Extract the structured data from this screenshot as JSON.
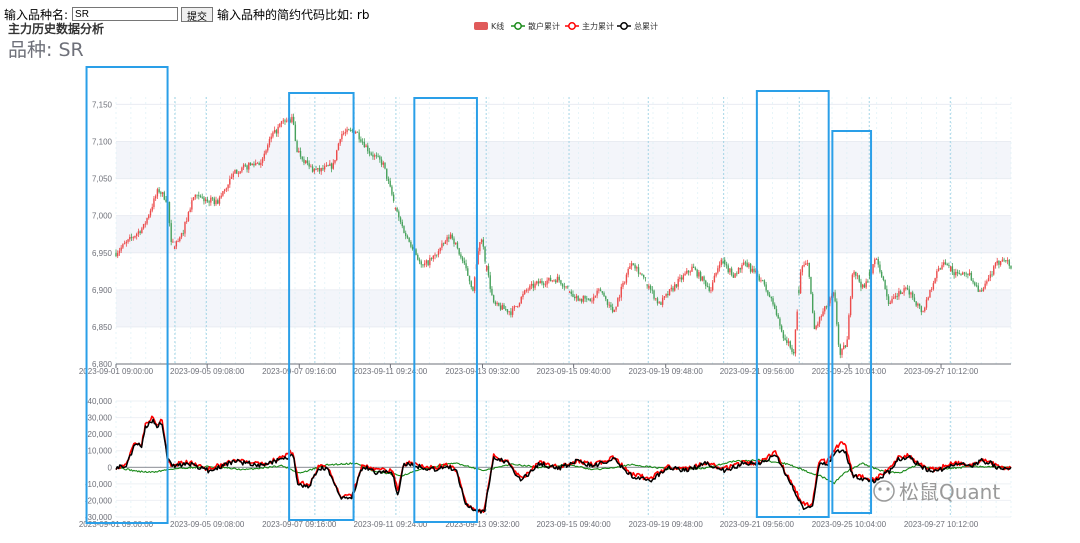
{
  "form": {
    "label": "输入品种名:",
    "input_value": "SR",
    "submit_label": "提交",
    "hint": "输入品种的简约代码比如: rb"
  },
  "chart_title": "主力历史数据分析",
  "variety_label": "品种: SR",
  "watermark": "松鼠Quant",
  "colors": {
    "up": "#ec4b4b",
    "down": "#47a15c",
    "retail": "#1a8a1a",
    "main": "#ff0000",
    "total": "#000000",
    "highlight": "#2a9fe8"
  },
  "chart_data": [
    {
      "type": "candlestick",
      "title": "",
      "legend": [
        {
          "name": "K线",
          "icon": "rect",
          "color": "#e05a5a"
        },
        {
          "name": "散户累计",
          "icon": "circle-line",
          "color": "#1a8a1a"
        },
        {
          "name": "主力累计",
          "icon": "circle-line",
          "color": "#ff0000"
        },
        {
          "name": "总累计",
          "icon": "circle-line",
          "color": "#000000"
        }
      ],
      "legend_position": "top-center",
      "x_tick_labels": [
        "2023-09-01 09:00:00",
        "2023-09-05 09:08:00",
        "2023-09-07 09:16:00",
        "2023-09-11 09:24:00",
        "2023-09-13 09:32:00",
        "2023-09-15 09:40:00",
        "2023-09-19 09:48:00",
        "2023-09-21 09:56:00",
        "2023-09-25 10:04:00",
        "2023-09-27 10:12:00"
      ],
      "y_ticks": [
        6800,
        6850,
        6900,
        6950,
        7000,
        7050,
        7100,
        7150
      ],
      "y_tick_labels": [
        "6,800",
        "6,850",
        "6,900",
        "6,950",
        "7,000",
        "7,050",
        "7,100",
        "7,150"
      ],
      "ylim": [
        6800,
        7160
      ],
      "grid_striped": true,
      "price_path": [
        [
          0,
          6950
        ],
        [
          1.5,
          6985
        ],
        [
          2.3,
          7035
        ],
        [
          2.8,
          7020
        ],
        [
          3.0,
          6960
        ],
        [
          3.5,
          6968
        ],
        [
          4.2,
          7025
        ],
        [
          5.5,
          7018
        ],
        [
          6.5,
          7060
        ],
        [
          7.3,
          7068
        ],
        [
          8.0,
          7075
        ],
        [
          8.3,
          7100
        ],
        [
          9.0,
          7125
        ],
        [
          9.6,
          7130
        ],
        [
          9.8,
          7090
        ],
        [
          10.5,
          7065
        ],
        [
          11.0,
          7060
        ],
        [
          11.8,
          7068
        ],
        [
          12.2,
          7110
        ],
        [
          13.0,
          7115
        ],
        [
          13.8,
          7085
        ],
        [
          14.5,
          7070
        ],
        [
          15.3,
          7000
        ],
        [
          15.8,
          6970
        ],
        [
          16.2,
          6955
        ],
        [
          16.6,
          6930
        ],
        [
          17.3,
          6945
        ],
        [
          18.2,
          6975
        ],
        [
          18.8,
          6940
        ],
        [
          19.4,
          6900
        ],
        [
          19.8,
          6975
        ],
        [
          20.5,
          6880
        ],
        [
          21.5,
          6870
        ],
        [
          22.3,
          6900
        ],
        [
          23.0,
          6910
        ],
        [
          24.0,
          6915
        ],
        [
          25.0,
          6890
        ],
        [
          25.8,
          6885
        ],
        [
          26.3,
          6900
        ],
        [
          27.0,
          6870
        ],
        [
          28.0,
          6940
        ],
        [
          28.8,
          6910
        ],
        [
          29.5,
          6880
        ],
        [
          30.5,
          6910
        ],
        [
          31.3,
          6930
        ],
        [
          32.3,
          6900
        ],
        [
          32.8,
          6940
        ],
        [
          33.5,
          6920
        ],
        [
          34.2,
          6935
        ],
        [
          35.0,
          6915
        ],
        [
          35.7,
          6880
        ],
        [
          36.2,
          6840
        ],
        [
          36.8,
          6815
        ],
        [
          37.2,
          6930
        ],
        [
          37.6,
          6935
        ],
        [
          37.9,
          6845
        ],
        [
          38.4,
          6870
        ],
        [
          39.0,
          6895
        ],
        [
          39.3,
          6810
        ],
        [
          39.7,
          6830
        ],
        [
          40.0,
          6930
        ],
        [
          40.6,
          6900
        ],
        [
          41.3,
          6945
        ],
        [
          42.0,
          6880
        ],
        [
          42.5,
          6895
        ],
        [
          43.0,
          6900
        ],
        [
          43.8,
          6870
        ],
        [
          44.5,
          6920
        ],
        [
          45.0,
          6940
        ],
        [
          45.6,
          6920
        ],
        [
          46.2,
          6925
        ],
        [
          47.0,
          6895
        ],
        [
          47.7,
          6930
        ],
        [
          48.2,
          6945
        ],
        [
          48.6,
          6930
        ]
      ],
      "session_breaks": [
        3.2,
        4.9,
        10.8,
        15.2,
        19.6,
        20.1,
        24.6,
        28.9,
        33.0,
        37.1,
        40.9,
        45.3
      ]
    },
    {
      "type": "line",
      "title": "",
      "x_tick_labels": [
        "2023-09-01 09:00:00",
        "2023-09-05 09:08:00",
        "2023-09-07 09:16:00",
        "2023-09-11 09:24:00",
        "2023-09-13 09:32:00",
        "2023-09-15 09:40:00",
        "2023-09-19 09:48:00",
        "2023-09-21 09:56:00",
        "2023-09-25 10:04:00",
        "2023-09-27 10:12:00"
      ],
      "y_ticks": [
        -30000,
        -20000,
        -10000,
        0,
        10000,
        20000,
        30000,
        40000
      ],
      "y_tick_labels": [
        "-30,000",
        "-20,000",
        "-10,000",
        "0",
        "10,000",
        "20,000",
        "30,000",
        "40,000"
      ],
      "ylim": [
        -30000,
        40000
      ],
      "series": [
        {
          "name": "散户累计",
          "points": [
            [
              0,
              0
            ],
            [
              1.2,
              -2500
            ],
            [
              2.0,
              -3000
            ],
            [
              3.0,
              -1000
            ],
            [
              5.0,
              500
            ],
            [
              7.0,
              -1500
            ],
            [
              9.0,
              1000
            ],
            [
              10.0,
              -3500
            ],
            [
              11.5,
              1500
            ],
            [
              13.0,
              2500
            ],
            [
              14.0,
              -2500
            ],
            [
              15.5,
              -5000
            ],
            [
              17.0,
              0
            ],
            [
              18.5,
              2500
            ],
            [
              20.0,
              -2000
            ],
            [
              21.5,
              2000
            ],
            [
              23.0,
              0
            ],
            [
              24.5,
              1500
            ],
            [
              26.0,
              -1500
            ],
            [
              28.0,
              1500
            ],
            [
              30.0,
              -1000
            ],
            [
              32.0,
              -500
            ],
            [
              33.5,
              3500
            ],
            [
              35.0,
              4500
            ],
            [
              36.5,
              2000
            ],
            [
              37.5,
              -2500
            ],
            [
              38.2,
              -5000
            ],
            [
              39.0,
              -9500
            ],
            [
              39.6,
              -3000
            ],
            [
              40.5,
              2500
            ],
            [
              41.5,
              -2000
            ],
            [
              42.5,
              -3500
            ],
            [
              43.5,
              1500
            ],
            [
              44.5,
              -1500
            ],
            [
              45.5,
              -500
            ],
            [
              46.5,
              500
            ],
            [
              48.6,
              0
            ]
          ]
        },
        {
          "name": "主力累计",
          "points": [
            [
              0,
              0
            ],
            [
              0.6,
              2000
            ],
            [
              1.0,
              15000
            ],
            [
              1.4,
              14000
            ],
            [
              1.6,
              26000
            ],
            [
              1.8,
              28000
            ],
            [
              2.0,
              30000
            ],
            [
              2.2,
              25000
            ],
            [
              2.5,
              29000
            ],
            [
              2.8,
              5000
            ],
            [
              3.0,
              1500
            ],
            [
              4.0,
              3000
            ],
            [
              5.0,
              -1000
            ],
            [
              6.5,
              4000
            ],
            [
              8.0,
              1500
            ],
            [
              9.3,
              8000
            ],
            [
              9.6,
              9500
            ],
            [
              9.9,
              -9000
            ],
            [
              10.5,
              -10000
            ],
            [
              11.0,
              500
            ],
            [
              11.5,
              0
            ],
            [
              12.2,
              -18000
            ],
            [
              12.8,
              -17000
            ],
            [
              13.4,
              2000
            ],
            [
              14.2,
              -2000
            ],
            [
              15.0,
              -1500
            ],
            [
              15.3,
              -14000
            ],
            [
              15.6,
              2000
            ],
            [
              16.2,
              2500
            ],
            [
              17.0,
              -500
            ],
            [
              18.0,
              1500
            ],
            [
              18.5,
              -2000
            ],
            [
              19.0,
              -22000
            ],
            [
              19.6,
              -26000
            ],
            [
              20.0,
              -26000
            ],
            [
              20.5,
              7000
            ],
            [
              21.3,
              3000
            ],
            [
              22.0,
              -7000
            ],
            [
              23.0,
              3000
            ],
            [
              24.0,
              0
            ],
            [
              25.0,
              4000
            ],
            [
              26.0,
              1500
            ],
            [
              27.0,
              6000
            ],
            [
              28.0,
              -4000
            ],
            [
              29.0,
              -7000
            ],
            [
              30.0,
              500
            ],
            [
              31.0,
              -1000
            ],
            [
              32.0,
              3000
            ],
            [
              33.0,
              -1000
            ],
            [
              34.0,
              2500
            ],
            [
              35.0,
              3000
            ],
            [
              35.8,
              9000
            ],
            [
              36.5,
              -6000
            ],
            [
              37.3,
              -22000
            ],
            [
              37.8,
              -23000
            ],
            [
              38.2,
              5000
            ],
            [
              38.6,
              3000
            ],
            [
              39.0,
              10000
            ],
            [
              39.4,
              16000
            ],
            [
              39.6,
              14000
            ],
            [
              40.0,
              -4000
            ],
            [
              40.5,
              -6000
            ],
            [
              41.2,
              -7000
            ],
            [
              42.0,
              -1500
            ],
            [
              42.5,
              6000
            ],
            [
              43.0,
              7000
            ],
            [
              44.0,
              -500
            ],
            [
              44.5,
              -1500
            ],
            [
              45.5,
              2500
            ],
            [
              46.5,
              1500
            ],
            [
              47.0,
              5000
            ],
            [
              47.5,
              3000
            ],
            [
              48.0,
              -500
            ],
            [
              48.6,
              0
            ]
          ]
        },
        {
          "name": "总累计",
          "points": [
            [
              0,
              0
            ],
            [
              0.6,
              1500
            ],
            [
              1.0,
              14000
            ],
            [
              1.4,
              13000
            ],
            [
              1.6,
              25000
            ],
            [
              1.8,
              26000
            ],
            [
              2.0,
              29000
            ],
            [
              2.2,
              25000
            ],
            [
              2.5,
              27000
            ],
            [
              2.8,
              5000
            ],
            [
              3.0,
              1000
            ],
            [
              4.0,
              2000
            ],
            [
              5.0,
              -2000
            ],
            [
              6.5,
              3500
            ],
            [
              8.0,
              1000
            ],
            [
              9.3,
              6000
            ],
            [
              9.6,
              8000
            ],
            [
              9.9,
              -11000
            ],
            [
              10.5,
              -11500
            ],
            [
              11.0,
              -500
            ],
            [
              11.5,
              -1000
            ],
            [
              12.2,
              -19000
            ],
            [
              12.8,
              -18500
            ],
            [
              13.4,
              1000
            ],
            [
              14.2,
              -3500
            ],
            [
              15.0,
              -3000
            ],
            [
              15.3,
              -17000
            ],
            [
              15.6,
              1500
            ],
            [
              16.2,
              1500
            ],
            [
              17.0,
              -2000
            ],
            [
              18.0,
              1000
            ],
            [
              18.5,
              -3000
            ],
            [
              19.0,
              -23000
            ],
            [
              19.6,
              -27000
            ],
            [
              20.0,
              -27000
            ],
            [
              20.5,
              6000
            ],
            [
              21.3,
              2500
            ],
            [
              22.0,
              -8000
            ],
            [
              23.0,
              2500
            ],
            [
              24.0,
              -1000
            ],
            [
              25.0,
              3500
            ],
            [
              26.0,
              1000
            ],
            [
              27.0,
              5500
            ],
            [
              28.0,
              -5000
            ],
            [
              29.0,
              -8000
            ],
            [
              30.0,
              0
            ],
            [
              31.0,
              -2000
            ],
            [
              32.0,
              2500
            ],
            [
              33.0,
              -2000
            ],
            [
              34.0,
              2000
            ],
            [
              35.0,
              2500
            ],
            [
              35.8,
              8000
            ],
            [
              36.5,
              -7000
            ],
            [
              37.3,
              -24000
            ],
            [
              37.8,
              -25000
            ],
            [
              38.2,
              3000
            ],
            [
              38.6,
              1500
            ],
            [
              39.0,
              8000
            ],
            [
              39.4,
              11000
            ],
            [
              39.6,
              9500
            ],
            [
              40.0,
              -5000
            ],
            [
              40.5,
              -7000
            ],
            [
              41.2,
              -8000
            ],
            [
              42.0,
              -2500
            ],
            [
              42.5,
              5000
            ],
            [
              43.0,
              6500
            ],
            [
              44.0,
              -1500
            ],
            [
              44.5,
              -2500
            ],
            [
              45.5,
              2000
            ],
            [
              46.5,
              1000
            ],
            [
              47.0,
              4000
            ],
            [
              47.5,
              2500
            ],
            [
              48.0,
              -1000
            ],
            [
              48.6,
              -500
            ]
          ]
        }
      ],
      "session_breaks": [
        3.2,
        4.9,
        10.8,
        15.2,
        19.6,
        20.1,
        24.6,
        28.9,
        33.0,
        37.1,
        40.9,
        45.3
      ]
    }
  ],
  "highlight_regions": [
    {
      "from": -1.6,
      "to": 2.8
    },
    {
      "from": 9.4,
      "to": 12.9
    },
    {
      "from": 16.2,
      "to": 19.6
    },
    {
      "from": 34.8,
      "to": 38.7
    },
    {
      "from": 38.9,
      "to": 41.0
    }
  ]
}
